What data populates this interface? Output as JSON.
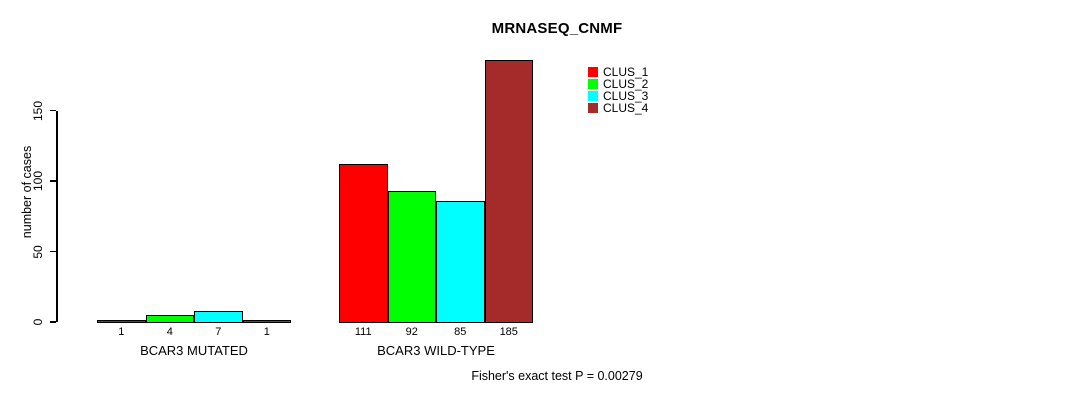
{
  "chart_data": {
    "type": "bar",
    "title": "MRNASEQ_CNMF",
    "ylabel": "number of cases",
    "xlabel": "",
    "groups": [
      "BCAR3 MUTATED",
      "BCAR3 WILD-TYPE"
    ],
    "series": [
      {
        "name": "CLUS_1",
        "color": "#ff0000",
        "values": [
          1,
          111
        ]
      },
      {
        "name": "CLUS_2",
        "color": "#00ff00",
        "values": [
          4,
          92
        ]
      },
      {
        "name": "CLUS_3",
        "color": "#00ffff",
        "values": [
          7,
          85
        ]
      },
      {
        "name": "CLUS_4",
        "color": "#a52a2a",
        "values": [
          1,
          185
        ]
      }
    ],
    "yticks": [
      0,
      50,
      100,
      150
    ],
    "ylim": [
      0,
      150
    ],
    "grid": false,
    "show_value_labels": true,
    "legend_position": "top-right",
    "legend_entries": [
      "CLUS_1",
      "CLUS_2",
      "CLUS_3",
      "CLUS_4"
    ],
    "annotation": "Fisher's exact test P = 0.00279",
    "axis_color": "#000000",
    "bar_border_color": "#000000",
    "background_color": "#ffffff"
  }
}
